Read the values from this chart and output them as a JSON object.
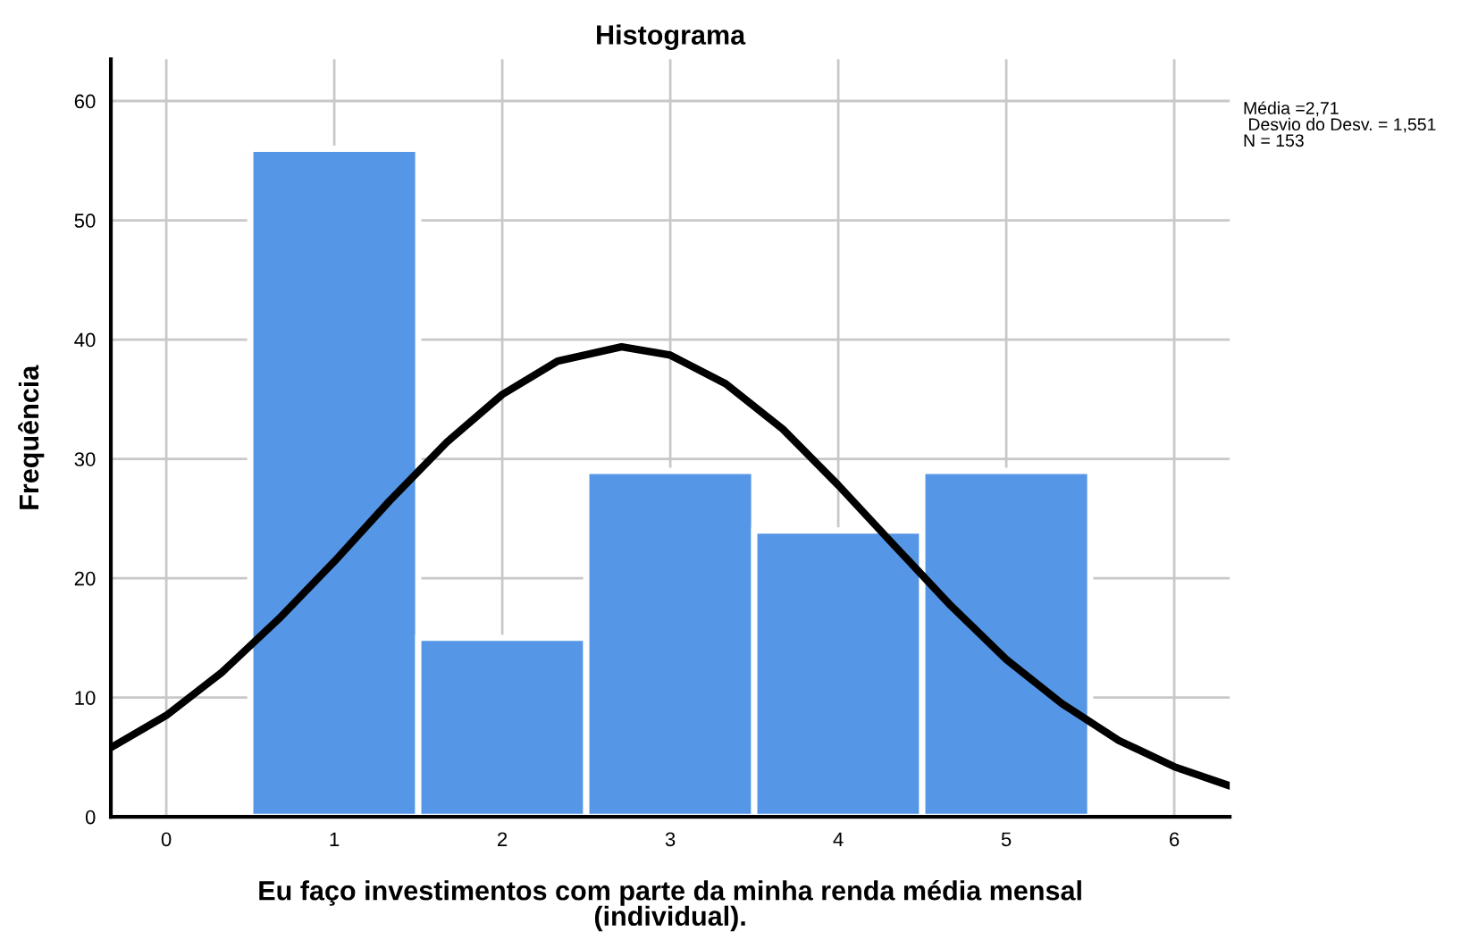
{
  "chart_data": {
    "type": "histogram",
    "title": "Histograma",
    "xlabel": "Eu faço investimentos com parte da minha renda média mensal\n(individual).",
    "ylabel": "Frequência",
    "bins": [
      0.5,
      1.5,
      2.5,
      3.5,
      4.5,
      5.5
    ],
    "values": [
      56,
      15,
      29,
      24,
      29
    ],
    "color": "#5596e6",
    "series": [
      {
        "type": "line",
        "color": "#000000",
        "x": [
          -0.33,
          0,
          0.33,
          0.67,
          1,
          1.33,
          1.67,
          2,
          2.33,
          2.71,
          3,
          3.33,
          3.67,
          4,
          4.33,
          4.67,
          5,
          5.33,
          5.67,
          6,
          6.33
        ],
        "values": [
          5.8,
          8.5,
          12.1,
          16.6,
          21.4,
          26.5,
          31.4,
          35.4,
          38.2,
          39.4,
          38.7,
          36.3,
          32.5,
          27.8,
          22.8,
          17.7,
          13.2,
          9.5,
          6.4,
          4.2,
          2.6
        ]
      }
    ],
    "annotations": [
      "Média =2,71\n Desvio do Desv. = 1,551\nN = 153"
    ],
    "xlim": [
      -0.33,
      6.33
    ],
    "ylim": [
      0,
      63.5
    ],
    "xticks": [
      0,
      1,
      2,
      3,
      4,
      5,
      6
    ],
    "yticks": [
      0,
      10,
      20,
      30,
      40,
      50,
      60
    ],
    "grid": true,
    "line_style": "solid",
    "marker": "none"
  }
}
